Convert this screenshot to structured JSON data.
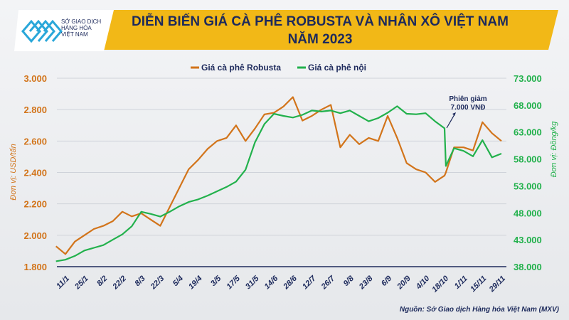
{
  "header": {
    "title_line1": "DIỄN BIẾN GIÁ CÀ PHÊ ROBUSTA VÀ NHÂN XÔ VIỆT NAM",
    "title_line2": "NĂM 2023"
  },
  "logo": {
    "lines": [
      "SỞ GIAO DỊCH",
      "HÀNG HÓA",
      "VIỆT NAM"
    ]
  },
  "source": "Nguồn: Sở Giao dịch Hàng hóa Việt Nam (MXV)",
  "chart_data": {
    "type": "line",
    "title": "DIỄN BIẾN GIÁ CÀ PHÊ ROBUSTA VÀ NHÂN XÔ VIỆT NAM NĂM 2023",
    "x_ticks": [
      "11/1",
      "25/1",
      "8/2",
      "22/2",
      "8/3",
      "22/3",
      "5/4",
      "19/4",
      "3/5",
      "17/5",
      "31/5",
      "14/6",
      "28/6",
      "12/7",
      "26/7",
      "9/8",
      "23/8",
      "6/9",
      "20/9",
      "4/10",
      "18/10",
      "1/11",
      "15/11",
      "29/11"
    ],
    "x": [
      "4/1",
      "11/1",
      "18/1",
      "25/1",
      "1/2",
      "8/2",
      "15/2",
      "22/2",
      "1/3",
      "8/3",
      "15/3",
      "22/3",
      "29/3",
      "5/4",
      "12/4",
      "19/4",
      "26/4",
      "3/5",
      "10/5",
      "17/5",
      "24/5",
      "31/5",
      "7/6",
      "14/6",
      "21/6",
      "28/6",
      "5/7",
      "12/7",
      "19/7",
      "26/7",
      "2/8",
      "9/8",
      "16/8",
      "23/8",
      "30/8",
      "6/9",
      "13/9",
      "20/9",
      "27/9",
      "4/10",
      "11/10",
      "18/10",
      "19/10",
      "25/10",
      "1/11",
      "8/11",
      "15/11",
      "22/11",
      "29/11"
    ],
    "y_left": {
      "label": "Đơn vị: USD/tấn",
      "range": [
        1800,
        3000
      ],
      "ticks": [
        "1.800",
        "2.000",
        "2.200",
        "2.400",
        "2.600",
        "2.800",
        "3.000"
      ]
    },
    "y_right": {
      "label": "Đơn vị: Đồng/kg",
      "range": [
        38000,
        73000
      ],
      "ticks": [
        "38.000",
        "43.000",
        "48.000",
        "53.000",
        "58.000",
        "63.000",
        "68.000",
        "73.000"
      ]
    },
    "grid": true,
    "legend_position": "top-center",
    "series": [
      {
        "name": "Giá cà phê Robusta",
        "axis": "left",
        "color": "#d2741a",
        "values": [
          1930,
          1880,
          1960,
          2000,
          2040,
          2060,
          2090,
          2150,
          2120,
          2140,
          2100,
          2060,
          2180,
          2300,
          2420,
          2480,
          2550,
          2600,
          2620,
          2700,
          2600,
          2680,
          2770,
          2780,
          2820,
          2880,
          2730,
          2760,
          2800,
          2830,
          2560,
          2640,
          2580,
          2620,
          2600,
          2760,
          2620,
          2460,
          2420,
          2400,
          2340,
          2380,
          2400,
          2560,
          2560,
          2540,
          2720,
          2650,
          2600
        ]
      },
      {
        "name": "Giá cà phê nội",
        "axis": "right",
        "color": "#22b14c",
        "values": [
          39000,
          39300,
          40000,
          41000,
          41500,
          42000,
          43000,
          44000,
          45500,
          48200,
          47800,
          47300,
          48200,
          49200,
          50000,
          50500,
          51200,
          52000,
          52800,
          53800,
          56000,
          61100,
          64500,
          66400,
          66000,
          65700,
          66200,
          67000,
          66800,
          67000,
          66500,
          67000,
          66000,
          65000,
          65600,
          66600,
          67800,
          66400,
          66300,
          66500,
          65000,
          63700,
          56700,
          60000,
          59500,
          58500,
          61500,
          58300,
          59000
        ]
      }
    ],
    "annotations": [
      {
        "text_line1": "Phiên giảm",
        "text_line2": "7.000 VNĐ",
        "at": "18/10"
      }
    ]
  }
}
